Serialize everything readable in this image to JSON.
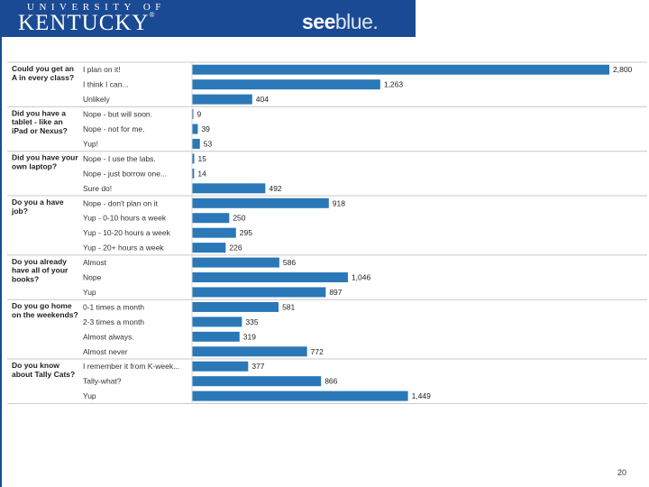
{
  "header": {
    "university_line": "UNIVERSITY OF",
    "kentucky": "KENTUCKY",
    "registered": "®",
    "seeblue_see": "see",
    "seeblue_blue": "blue."
  },
  "page_number": "20",
  "colors": {
    "bar": "#2a78b8",
    "brand": "#1b4a94"
  },
  "chart_data": {
    "type": "bar",
    "orientation": "horizontal",
    "xlim": [
      0,
      2800
    ],
    "questions": [
      {
        "question": [
          "Could you get an",
          "A in every class?"
        ],
        "answers": [
          {
            "label": "I plan on it!",
            "value": 2800,
            "value_label": "2,800"
          },
          {
            "label": "I think I can...",
            "value": 1263,
            "value_label": "1,263"
          },
          {
            "label": "Unlikely",
            "value": 404,
            "value_label": "404"
          }
        ]
      },
      {
        "question": [
          "Did you have a",
          "tablet - like an",
          "iPad or Nexus?"
        ],
        "answers": [
          {
            "label": "Nope - but will soon.",
            "value": 9,
            "value_label": "9"
          },
          {
            "label": "Nope - not for me.",
            "value": 39,
            "value_label": "39"
          },
          {
            "label": "Yup!",
            "value": 53,
            "value_label": "53"
          }
        ]
      },
      {
        "question": [
          "Did you have your",
          "own laptop?"
        ],
        "answers": [
          {
            "label": "Nope - I use the labs.",
            "value": 15,
            "value_label": "15"
          },
          {
            "label": "Nope - just borrow one...",
            "value": 14,
            "value_label": "14"
          },
          {
            "label": "Sure do!",
            "value": 492,
            "value_label": "492"
          }
        ]
      },
      {
        "question": [
          "Do you a have",
          "job?"
        ],
        "answers": [
          {
            "label": "Nope - don't plan on it",
            "value": 918,
            "value_label": "918"
          },
          {
            "label": "Yup - 0-10 hours a week",
            "value": 250,
            "value_label": "250"
          },
          {
            "label": "Yup - 10-20 hours a week",
            "value": 295,
            "value_label": "295"
          },
          {
            "label": "Yup - 20+ hours a week",
            "value": 226,
            "value_label": "226"
          }
        ]
      },
      {
        "question": [
          "Do you already",
          "have all of your",
          "books?"
        ],
        "answers": [
          {
            "label": "Almost",
            "value": 586,
            "value_label": "586"
          },
          {
            "label": "Nope",
            "value": 1046,
            "value_label": "1,046"
          },
          {
            "label": "Yup",
            "value": 897,
            "value_label": "897"
          }
        ]
      },
      {
        "question": [
          "Do you go home",
          "on the weekends?"
        ],
        "answers": [
          {
            "label": "0-1 times a month",
            "value": 581,
            "value_label": "581"
          },
          {
            "label": "2-3 times a month",
            "value": 335,
            "value_label": "335"
          },
          {
            "label": "Almost always.",
            "value": 319,
            "value_label": "319"
          },
          {
            "label": "Almost never",
            "value": 772,
            "value_label": "772"
          }
        ]
      },
      {
        "question": [
          "Do you know",
          "about Tally Cats?"
        ],
        "answers": [
          {
            "label": "I remember it from K-week...",
            "value": 377,
            "value_label": "377"
          },
          {
            "label": "Tally-what?",
            "value": 866,
            "value_label": "866"
          },
          {
            "label": "Yup",
            "value": 1449,
            "value_label": "1,449"
          }
        ]
      }
    ]
  }
}
